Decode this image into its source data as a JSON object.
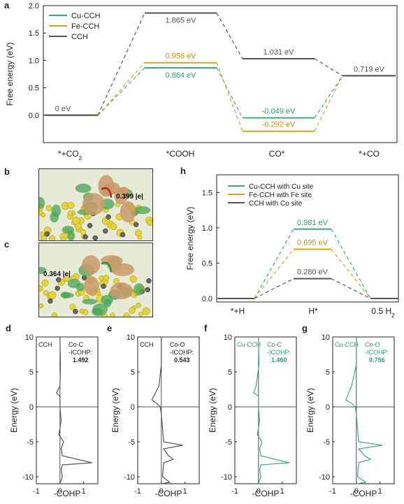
{
  "colors": {
    "cu": "#3daa82",
    "fe": "#d7a21c",
    "cch": "#555555",
    "cu_label": "#2f9e73",
    "fe_label": "#c58f10"
  },
  "panel_a": {
    "label": "a",
    "chart_data": {
      "type": "line",
      "ylabel": "Free energy (eV)",
      "ylim": [
        -0.5,
        2.0
      ],
      "yticks": [
        "0.0",
        "0.5",
        "1.0",
        "1.5",
        "2.0"
      ],
      "categories": [
        "*+CO",
        "*COOH",
        "CO*",
        "*+CO"
      ],
      "category_sub": [
        "2",
        "",
        "",
        ""
      ],
      "series": [
        {
          "name": "Cu-CCH",
          "color": "cu",
          "values": [
            0,
            0.864,
            -0.049,
            0.719
          ]
        },
        {
          "name": "Fe-CCH",
          "color": "fe",
          "values": [
            0,
            0.958,
            -0.292,
            0.719
          ]
        },
        {
          "name": "CCH",
          "color": "cch",
          "values": [
            0,
            1.865,
            1.031,
            0.719
          ]
        }
      ],
      "annotations": [
        {
          "text": "0 eV",
          "color": "cch",
          "step": 0,
          "value": 0
        },
        {
          "text": "1.865 eV",
          "color": "cch",
          "step": 1,
          "value": 1.865
        },
        {
          "text": "0.958 eV",
          "color": "fe",
          "step": 1,
          "value": 0.958
        },
        {
          "text": "0.864 eV",
          "color": "cu",
          "step": 1,
          "value": 0.864
        },
        {
          "text": "1.031 eV",
          "color": "cch",
          "step": 2,
          "value": 1.031
        },
        {
          "text": "-0.049 eV",
          "color": "cu",
          "step": 2,
          "value": -0.049
        },
        {
          "text": "-0.292 eV",
          "color": "fe",
          "step": 2,
          "value": -0.292
        },
        {
          "text": "0.719 eV",
          "color": "cch",
          "step": 3,
          "value": 0.719
        }
      ]
    }
  },
  "panel_b": {
    "label": "b",
    "annotation": "0.399 |e|"
  },
  "panel_c": {
    "label": "c",
    "annotation": "0.364 |e|"
  },
  "panel_h": {
    "label": "h",
    "chart_data": {
      "type": "line",
      "ylabel": "Free energy (eV)",
      "ylim": [
        -0.05,
        1.75
      ],
      "yticks": [
        "0.0",
        "0.5",
        "1.0",
        "1.5"
      ],
      "categories": [
        "*+H",
        "H*",
        "0.5 H"
      ],
      "category_sub": [
        "",
        "",
        "2"
      ],
      "series": [
        {
          "name": "Cu-CCH with Cu site",
          "color": "cu",
          "values": [
            0,
            0.981,
            0
          ]
        },
        {
          "name": "Fe-CCH with Fe site",
          "color": "fe",
          "values": [
            0,
            0.695,
            0
          ]
        },
        {
          "name": "CCH with Co site",
          "color": "cch",
          "values": [
            0,
            0.28,
            0
          ]
        }
      ],
      "annotations": [
        {
          "text": "0.981 eV",
          "color": "cu",
          "step": 1,
          "value": 0.981
        },
        {
          "text": "0.695 eV",
          "color": "fe",
          "step": 1,
          "value": 0.695
        },
        {
          "text": "0.280 eV",
          "color": "cch",
          "step": 1,
          "value": 0.28
        }
      ]
    }
  },
  "cohp_panels": [
    {
      "label": "d",
      "sample": "CCH",
      "bond": "Co-C",
      "icohp_label": "-ICOHP:",
      "icohp": "1.492",
      "color": "cch",
      "xlabel": "-COHP",
      "ylabel": "Energy (eV)",
      "xlim": [
        -1,
        1.6
      ],
      "ylim": [
        -11,
        10
      ],
      "xticks": [
        "-1",
        "0",
        "1"
      ],
      "yticks": [
        "10",
        "5",
        "0",
        "-5",
        "-10"
      ],
      "chart_data": {
        "type": "line",
        "energy": [
          10,
          6,
          3,
          2,
          1.5,
          0,
          -2,
          -4,
          -5,
          -6,
          -7,
          -8,
          -8.3,
          -9,
          -10,
          -11
        ],
        "cohp": [
          0,
          0.02,
          0,
          -0.15,
          0,
          0,
          0.05,
          -0.05,
          0.15,
          0.05,
          0.1,
          1.35,
          0.1,
          0.05,
          0.1,
          0
        ]
      }
    },
    {
      "label": "e",
      "sample": "CCH",
      "bond": "Co-O",
      "icohp_label": "-ICOHP:",
      "icohp": "0.543",
      "color": "cch",
      "xlabel": "-COHP",
      "ylabel": "Energy (eV)",
      "xlim": [
        -1,
        1.6
      ],
      "ylim": [
        -11,
        10
      ],
      "xticks": [
        "-1",
        "0",
        "1"
      ],
      "yticks": [
        "10",
        "5",
        "0",
        "-5",
        "-10"
      ],
      "chart_data": {
        "type": "line",
        "energy": [
          10,
          6,
          3,
          1,
          0.5,
          0,
          -1,
          -3,
          -5,
          -5.5,
          -6,
          -7,
          -7.5,
          -8,
          -10,
          -10.8,
          -11
        ],
        "cohp": [
          0,
          0,
          -0.1,
          -0.4,
          -0.2,
          -0.05,
          0,
          0.05,
          0.1,
          0.9,
          0.1,
          0.3,
          0.5,
          0.1,
          0.05,
          0.35,
          0
        ]
      }
    },
    {
      "label": "f",
      "sample": "Cu-CCH",
      "bond": "Co-C",
      "icohp_label": "-ICOHP:",
      "icohp": "1.460",
      "color": "cu",
      "xlabel": "-COHP",
      "ylabel": "Energy (eV)",
      "xlim": [
        -1,
        1.6
      ],
      "ylim": [
        -11,
        10
      ],
      "xticks": [
        "-1",
        "0",
        "1"
      ],
      "yticks": [
        "10",
        "5",
        "0",
        "-5",
        "-10"
      ],
      "chart_data": {
        "type": "line",
        "energy": [
          10,
          6,
          3,
          2,
          1.5,
          0,
          -2,
          -4,
          -5,
          -6,
          -7,
          -8,
          -8.3,
          -9,
          -10,
          -11
        ],
        "cohp": [
          0,
          0.02,
          -0.1,
          -0.2,
          0,
          0,
          0.05,
          -0.05,
          0.15,
          0.05,
          0.1,
          1.3,
          0.1,
          0.05,
          0.1,
          0
        ]
      }
    },
    {
      "label": "g",
      "sample": "Cu-CCH",
      "bond": "Co-O",
      "icohp_label": "-ICOHP:",
      "icohp": "0.756",
      "color": "cu",
      "xlabel": "-COHP",
      "ylabel": "Energy (eV)",
      "xlim": [
        -1,
        1.6
      ],
      "ylim": [
        -11,
        10
      ],
      "xticks": [
        "-1",
        "0",
        "1"
      ],
      "yticks": [
        "10",
        "5",
        "0",
        "-5",
        "-10"
      ],
      "chart_data": {
        "type": "line",
        "energy": [
          10,
          6,
          3,
          1,
          0.5,
          0,
          -1,
          -3,
          -5,
          -5.5,
          -6,
          -7,
          -7.5,
          -8,
          -10,
          -10.8,
          -11
        ],
        "cohp": [
          0,
          0,
          -0.2,
          -0.45,
          -0.2,
          -0.05,
          0,
          0.05,
          0.1,
          1.1,
          0.1,
          0.35,
          0.6,
          0.1,
          0.05,
          0.4,
          0
        ]
      }
    }
  ]
}
